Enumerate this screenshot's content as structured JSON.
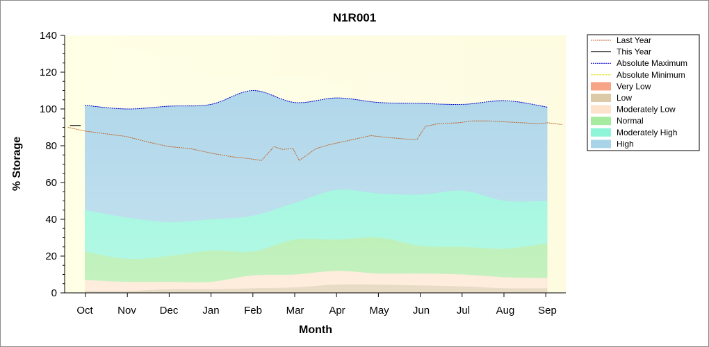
{
  "chart_data": {
    "type": "area",
    "title": "N1R001",
    "xlabel": "Month",
    "ylabel": "% Storage",
    "categories": [
      "Oct",
      "Nov",
      "Dec",
      "Jan",
      "Feb",
      "Mar",
      "Apr",
      "May",
      "Jun",
      "Jul",
      "Aug",
      "Sep"
    ],
    "ylim": [
      0,
      140
    ],
    "yticks": [
      0,
      20,
      40,
      60,
      80,
      100,
      120,
      140
    ],
    "legend_position": "right",
    "bands": [
      {
        "name": "High",
        "color": "#a9d4e8",
        "values": [
          102,
          100,
          101.5,
          102.5,
          110,
          103.5,
          106,
          103.5,
          103,
          102.5,
          104.5,
          101
        ]
      },
      {
        "name": "Moderately High",
        "color": "#8ff5d9",
        "values": [
          45,
          41,
          38.5,
          40,
          42,
          49,
          56,
          54,
          53.5,
          55.5,
          50,
          50
        ]
      },
      {
        "name": "Normal",
        "color": "#a6eba0",
        "values": [
          22.5,
          18.5,
          20,
          23,
          22.5,
          29,
          29,
          30,
          25.5,
          25,
          24,
          27
        ]
      },
      {
        "name": "Moderately Low",
        "color": "#fde3cc",
        "values": [
          7,
          6,
          6,
          6,
          9.5,
          10,
          12,
          10.5,
          10.5,
          10,
          8.5,
          8
        ]
      },
      {
        "name": "Low",
        "color": "#dcc9a8",
        "values": [
          1,
          1,
          2,
          2,
          2.5,
          3,
          4.5,
          4.5,
          4,
          3.5,
          2.5,
          2.5
        ]
      },
      {
        "name": "Very Low",
        "color": "#f7a386",
        "values": [
          0,
          0,
          0,
          0,
          0,
          0,
          0,
          0,
          0,
          0,
          0,
          0
        ]
      }
    ],
    "series": [
      {
        "name": "Last Year",
        "color": "#c0662d",
        "style": "dotted",
        "x": [
          -0.4,
          0,
          0.5,
          1,
          1.5,
          2,
          2.5,
          3,
          3.5,
          3.9,
          4.2,
          4.5,
          4.7,
          4.95,
          5.1,
          5.5,
          5.8,
          6.3,
          6.8,
          7.2,
          7.7,
          7.9,
          8.1,
          8.4,
          8.9,
          9.2,
          9.6,
          10,
          10.4,
          10.8,
          11.0,
          11.35
        ],
        "values": [
          90,
          88,
          86.5,
          85,
          82,
          79.5,
          78.5,
          76,
          74,
          73,
          72,
          79.5,
          78,
          78.5,
          72,
          78.5,
          80.5,
          83,
          85.5,
          84.5,
          83.5,
          83.5,
          90.5,
          92,
          92.5,
          93.5,
          93.5,
          93,
          92.5,
          92,
          92.5,
          91.5
        ]
      },
      {
        "name": "This Year",
        "color": "#000000",
        "style": "solid",
        "x": [
          -0.35,
          -0.1
        ],
        "values": [
          91,
          91
        ]
      },
      {
        "name": "Absolute Maximum",
        "color": "#0000cc",
        "style": "dotted",
        "x": [
          0,
          1,
          2,
          3,
          4,
          5,
          6,
          7,
          8,
          9,
          10,
          11
        ],
        "values": [
          102,
          100,
          101.5,
          102.5,
          110,
          103.5,
          106,
          103.5,
          103,
          102.5,
          104.5,
          101
        ]
      },
      {
        "name": "Absolute Minimum",
        "color": "#e0e000",
        "style": "dotted",
        "x": [],
        "values": []
      }
    ],
    "legend": [
      {
        "label": "Last Year",
        "kind": "line",
        "color": "#c0662d",
        "dash": "2,1"
      },
      {
        "label": "This Year",
        "kind": "line",
        "color": "#000000",
        "dash": ""
      },
      {
        "label": "Absolute Maximum",
        "kind": "line",
        "color": "#0000cc",
        "dash": "2,1"
      },
      {
        "label": "Absolute Minimum",
        "kind": "line",
        "color": "#e0e000",
        "dash": "3,1"
      },
      {
        "label": "Very Low",
        "kind": "swatch",
        "color": "#f7a386"
      },
      {
        "label": "Low",
        "kind": "swatch",
        "color": "#dcc9a8"
      },
      {
        "label": "Moderately Low",
        "kind": "swatch",
        "color": "#fde3cc"
      },
      {
        "label": "Normal",
        "kind": "swatch",
        "color": "#a6eba0"
      },
      {
        "label": "Moderately High",
        "kind": "swatch",
        "color": "#8ff5d9"
      },
      {
        "label": "High",
        "kind": "swatch",
        "color": "#a9d4e8"
      }
    ]
  }
}
